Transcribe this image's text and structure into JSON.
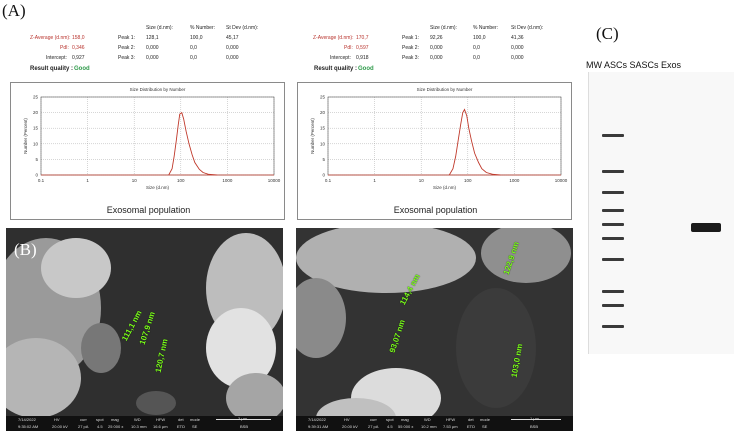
{
  "panels": {
    "a": "(A)",
    "b": "(B)",
    "c": "(C)"
  },
  "chart_data": [
    {
      "type": "line",
      "title": "Size Distribution by Number",
      "xlabel": "Size (d.nm)",
      "ylabel": "Number (Percent)",
      "xscale": "log",
      "xlim": [
        0.1,
        10000
      ],
      "ylim": [
        0,
        25
      ],
      "xticks": [
        "0.1",
        "1",
        "10",
        "100",
        "1000",
        "10000"
      ],
      "yticks": [
        "0",
        "5",
        "10",
        "15",
        "20",
        "25"
      ],
      "grid": true,
      "caption": "Exosomal population",
      "summary": {
        "z_average_label": "Z-Average (d.nm):",
        "z_average": "158,0",
        "pdi_label": "PdI:",
        "pdi": "0,346",
        "intercept_label": "Intercept:",
        "intercept": "0,927",
        "quality_label": "Result quality :",
        "quality": "Good",
        "col_size": "Size (d.nm):",
        "col_number": "% Number:",
        "col_stdev": "St Dev (d.nm):",
        "peaks": [
          {
            "label": "Peak 1:",
            "size": "128,1",
            "number": "100,0",
            "stdev": "45,17"
          },
          {
            "label": "Peak 2:",
            "size": "0,000",
            "number": "0,0",
            "stdev": "0,000"
          },
          {
            "label": "Peak 3:",
            "size": "0,000",
            "number": "0,0",
            "stdev": "0,000"
          }
        ]
      },
      "x": [
        55,
        65,
        72,
        80,
        88,
        95,
        105,
        115,
        130,
        150,
        175,
        200,
        250,
        300,
        400,
        600
      ],
      "y": [
        0,
        2,
        6,
        11,
        16,
        19.5,
        20,
        18,
        14,
        10,
        6.5,
        4,
        1.8,
        0.8,
        0.2,
        0
      ]
    },
    {
      "type": "line",
      "title": "Size Distribution by Number",
      "xlabel": "Size (d.nm)",
      "ylabel": "Number (Percent)",
      "xscale": "log",
      "xlim": [
        0.1,
        10000
      ],
      "ylim": [
        0,
        25
      ],
      "xticks": [
        "0.1",
        "1",
        "10",
        "100",
        "1000",
        "10000"
      ],
      "yticks": [
        "0",
        "5",
        "10",
        "15",
        "20",
        "25"
      ],
      "grid": true,
      "caption": "Exosomal population",
      "summary": {
        "z_average_label": "Z-Average (d.nm):",
        "z_average": "170,7",
        "pdi_label": "PdI:",
        "pdi": "0,597",
        "intercept_label": "Intercept:",
        "intercept": "0,918",
        "quality_label": "Result quality :",
        "quality": "Good",
        "col_size": "Size (d.nm):",
        "col_number": "% Number:",
        "col_stdev": "St Dev (d.nm):",
        "peaks": [
          {
            "label": "Peak 1:",
            "size": "92,26",
            "number": "100,0",
            "stdev": "41,36"
          },
          {
            "label": "Peak 2:",
            "size": "0,000",
            "number": "0,0",
            "stdev": "0,000"
          },
          {
            "label": "Peak 3:",
            "size": "0,000",
            "number": "0,0",
            "stdev": "0,000"
          }
        ]
      },
      "x": [
        40,
        48,
        55,
        62,
        70,
        78,
        85,
        95,
        105,
        120,
        140,
        170,
        200,
        250,
        350,
        500
      ],
      "y": [
        0,
        2,
        6,
        11,
        16,
        20,
        21,
        19,
        15,
        11,
        7,
        4,
        2,
        0.8,
        0.2,
        0
      ]
    }
  ],
  "sem": [
    {
      "measurements": [
        "111,1 nm",
        "107,9 nm",
        "120,7 nm"
      ],
      "info": {
        "date": "7/14/2022",
        "time": "9:35:02 AM",
        "hv": "20.00 kV",
        "curr": "27 pA",
        "spot": "4.5",
        "mag": "25 000 x",
        "wd": "10.3 mm",
        "hfw": "16.6 µm",
        "det": "ETD",
        "mode": "SE",
        "scale": "3 µm",
        "lab": "BSB",
        "hv_label": "HV",
        "curr_label": "curr",
        "spot_label": "spot",
        "mag_label": "mag",
        "wd_label": "WD",
        "hfw_label": "HFW",
        "det_label": "det",
        "mode_label": "mode"
      }
    },
    {
      "measurements": [
        "114,4 nm",
        "93,07 nm",
        "122,9 nm",
        "103,0 nm"
      ],
      "info": {
        "date": "7/14/2022",
        "time": "9:39:31 AM",
        "hv": "20.00 kV",
        "curr": "27 pA",
        "spot": "4.5",
        "mag": "55 000 x",
        "wd": "10.2 mm",
        "hfw": "7.53 µm",
        "det": "ETD",
        "mode": "SE",
        "scale": "1 µm",
        "lab": "BSB",
        "hv_label": "HV",
        "curr_label": "curr",
        "spot_label": "spot",
        "mag_label": "mag",
        "wd_label": "WD",
        "hfw_label": "HFW",
        "det_label": "det",
        "mode_label": "mode"
      }
    }
  ],
  "western": {
    "header": "MW ASCs SASCs Exos",
    "ladder_bands": 10
  }
}
